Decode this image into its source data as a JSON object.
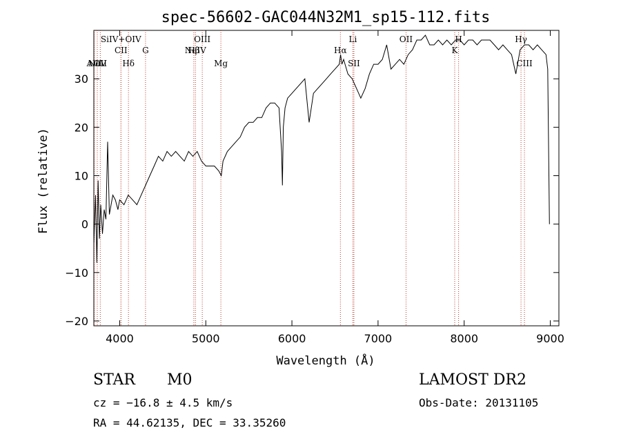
{
  "chart_data": {
    "type": "line",
    "title": "spec-56602-GAC044N32M1_sp15-112.fits",
    "xlabel": "Wavelength (Å)",
    "ylabel": "Flux (relative)",
    "xlim": [
      3700,
      9100
    ],
    "ylim": [
      -21,
      40
    ],
    "xticks": [
      4000,
      5000,
      6000,
      7000,
      8000,
      9000
    ],
    "yticks": [
      -20,
      -10,
      0,
      10,
      20,
      30
    ],
    "grid": false,
    "series": [
      {
        "points": [
          [
            3700,
            -4
          ],
          [
            3720,
            6
          ],
          [
            3735,
            -8
          ],
          [
            3750,
            9
          ],
          [
            3765,
            -3
          ],
          [
            3780,
            4
          ],
          [
            3800,
            -2
          ],
          [
            3820,
            3
          ],
          [
            3840,
            1
          ],
          [
            3860,
            17
          ],
          [
            3880,
            2
          ],
          [
            3900,
            4
          ],
          [
            3920,
            6
          ],
          [
            3950,
            5
          ],
          [
            3980,
            3
          ],
          [
            4000,
            5
          ],
          [
            4050,
            4
          ],
          [
            4100,
            6
          ],
          [
            4150,
            5
          ],
          [
            4200,
            4
          ],
          [
            4250,
            6
          ],
          [
            4300,
            8
          ],
          [
            4350,
            10
          ],
          [
            4400,
            12
          ],
          [
            4450,
            14
          ],
          [
            4500,
            13
          ],
          [
            4550,
            15
          ],
          [
            4600,
            14
          ],
          [
            4650,
            15
          ],
          [
            4700,
            14
          ],
          [
            4750,
            13
          ],
          [
            4800,
            15
          ],
          [
            4850,
            14
          ],
          [
            4900,
            15
          ],
          [
            4950,
            13
          ],
          [
            5000,
            12
          ],
          [
            5050,
            12
          ],
          [
            5100,
            12
          ],
          [
            5150,
            11
          ],
          [
            5180,
            10
          ],
          [
            5200,
            13
          ],
          [
            5250,
            15
          ],
          [
            5300,
            16
          ],
          [
            5350,
            17
          ],
          [
            5400,
            18
          ],
          [
            5450,
            20
          ],
          [
            5500,
            21
          ],
          [
            5550,
            21
          ],
          [
            5600,
            22
          ],
          [
            5650,
            22
          ],
          [
            5700,
            24
          ],
          [
            5750,
            25
          ],
          [
            5800,
            25
          ],
          [
            5850,
            24
          ],
          [
            5880,
            15
          ],
          [
            5890,
            8
          ],
          [
            5900,
            20
          ],
          [
            5920,
            24
          ],
          [
            5950,
            26
          ],
          [
            6000,
            27
          ],
          [
            6050,
            28
          ],
          [
            6100,
            29
          ],
          [
            6150,
            30
          ],
          [
            6200,
            21
          ],
          [
            6250,
            27
          ],
          [
            6300,
            28
          ],
          [
            6350,
            29
          ],
          [
            6400,
            30
          ],
          [
            6450,
            31
          ],
          [
            6500,
            32
          ],
          [
            6550,
            33
          ],
          [
            6565,
            35
          ],
          [
            6580,
            33
          ],
          [
            6600,
            34
          ],
          [
            6650,
            31
          ],
          [
            6700,
            30
          ],
          [
            6750,
            28
          ],
          [
            6800,
            26
          ],
          [
            6850,
            28
          ],
          [
            6900,
            31
          ],
          [
            6950,
            33
          ],
          [
            7000,
            33
          ],
          [
            7050,
            34
          ],
          [
            7100,
            37
          ],
          [
            7150,
            32
          ],
          [
            7200,
            33
          ],
          [
            7250,
            34
          ],
          [
            7300,
            33
          ],
          [
            7350,
            35
          ],
          [
            7400,
            36
          ],
          [
            7450,
            38
          ],
          [
            7500,
            38
          ],
          [
            7550,
            39
          ],
          [
            7600,
            37
          ],
          [
            7650,
            37
          ],
          [
            7700,
            38
          ],
          [
            7750,
            37
          ],
          [
            7800,
            38
          ],
          [
            7850,
            37
          ],
          [
            7900,
            38
          ],
          [
            7950,
            38
          ],
          [
            8000,
            37
          ],
          [
            8050,
            38
          ],
          [
            8100,
            38
          ],
          [
            8150,
            37
          ],
          [
            8200,
            38
          ],
          [
            8250,
            38
          ],
          [
            8300,
            38
          ],
          [
            8350,
            37
          ],
          [
            8400,
            36
          ],
          [
            8450,
            37
          ],
          [
            8500,
            36
          ],
          [
            8550,
            35
          ],
          [
            8600,
            31
          ],
          [
            8650,
            36
          ],
          [
            8700,
            37
          ],
          [
            8750,
            37
          ],
          [
            8800,
            36
          ],
          [
            8850,
            37
          ],
          [
            8900,
            36
          ],
          [
            8950,
            35
          ],
          [
            8970,
            32
          ],
          [
            8990,
            0
          ]
        ]
      }
    ],
    "lines": [
      {
        "label": "AlII",
        "x": 3705,
        "tier": "low"
      },
      {
        "label": "NeV",
        "x": 3740,
        "tier": "low"
      },
      {
        "label": "OII",
        "x": 3775,
        "tier": "low"
      },
      {
        "label": "SiIV+OIV",
        "x": 4015,
        "tier": "top"
      },
      {
        "label": "CII",
        "x": 4015,
        "tier": "mid"
      },
      {
        "label": "Hδ",
        "x": 4102,
        "tier": "low"
      },
      {
        "label": "G",
        "x": 4300,
        "tier": "mid"
      },
      {
        "label": "OIII",
        "x": 4959,
        "tier": "top"
      },
      {
        "label": "NeIV",
        "x": 4880,
        "tier": "mid"
      },
      {
        "label": "Hβ",
        "x": 4861,
        "tier": "mid"
      },
      {
        "label": "Mg",
        "x": 5175,
        "tier": "low"
      },
      {
        "label": "Li",
        "x": 6708,
        "tier": "top"
      },
      {
        "label": "Hα",
        "x": 6563,
        "tier": "mid"
      },
      {
        "label": "SII",
        "x": 6720,
        "tier": "low"
      },
      {
        "label": "OII",
        "x": 7325,
        "tier": "top"
      },
      {
        "label": "H",
        "x": 7935,
        "tier": "top"
      },
      {
        "label": "K",
        "x": 7890,
        "tier": "mid"
      },
      {
        "label": "Hγ",
        "x": 8660,
        "tier": "top"
      },
      {
        "label": "CIII",
        "x": 8700,
        "tier": "low"
      }
    ],
    "line_color": "#c0392b"
  },
  "footer": {
    "object_class": "STAR",
    "subclass": "M0",
    "survey": "LAMOST DR2",
    "cz": "cz = −16.8 ± 4.5 km/s",
    "obs_date": "Obs-Date: 20131105",
    "coords": "RA =  44.62135, DEC =  33.35260"
  }
}
